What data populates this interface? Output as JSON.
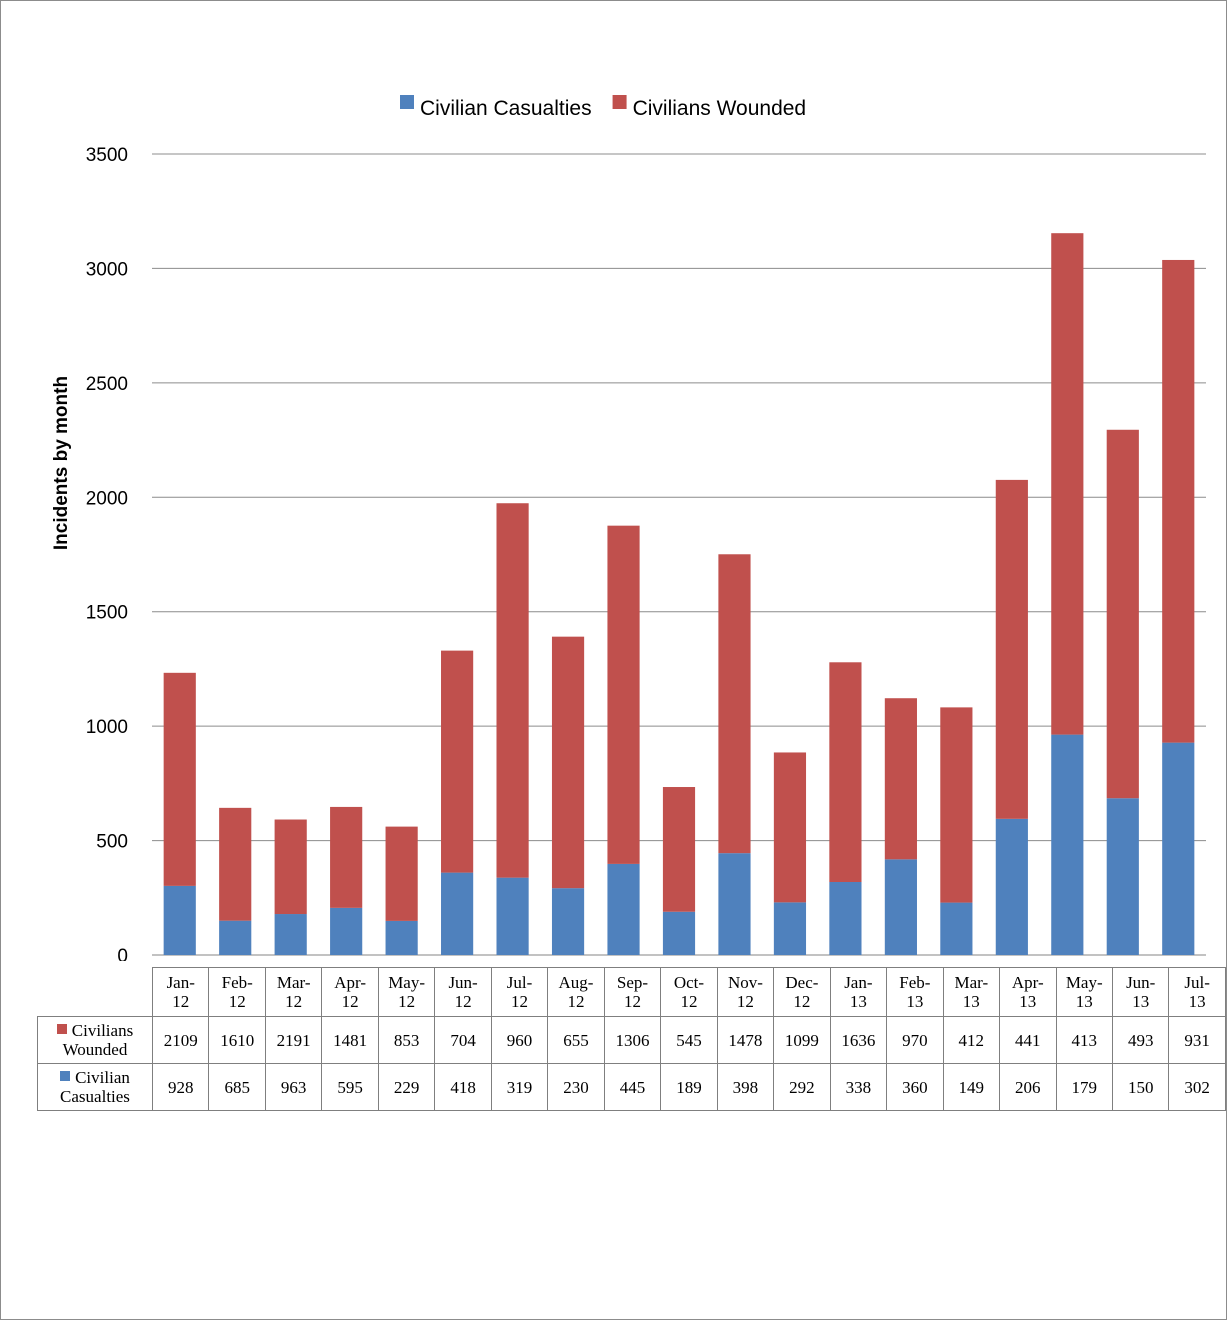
{
  "chart_data": {
    "type": "bar",
    "stacked": true,
    "ylabel": "Incidents by month",
    "ylim": [
      0,
      3500
    ],
    "yticks": [
      0,
      500,
      1000,
      1500,
      2000,
      2500,
      3000,
      3500
    ],
    "grid": true,
    "legend_position": "top",
    "categories": [
      "Jan-12",
      "Feb-12",
      "Mar-12",
      "Apr-12",
      "May-12",
      "Jun-12",
      "Jul-12",
      "Aug-12",
      "Sep-12",
      "Oct-12",
      "Nov-12",
      "Dec-12",
      "Jan-13",
      "Feb-13",
      "Mar-13",
      "Apr-13",
      "May-13",
      "Jun-13",
      "Jul-13"
    ],
    "category_lines": [
      [
        "Jan-",
        "12"
      ],
      [
        "Feb-",
        "12"
      ],
      [
        "Mar-",
        "12"
      ],
      [
        "Apr-",
        "12"
      ],
      [
        "May-",
        "12"
      ],
      [
        "Jun-",
        "12"
      ],
      [
        "Jul-",
        "12"
      ],
      [
        "Aug-",
        "12"
      ],
      [
        "Sep-",
        "12"
      ],
      [
        "Oct-",
        "12"
      ],
      [
        "Nov-",
        "12"
      ],
      [
        "Dec-",
        "12"
      ],
      [
        "Jan-",
        "13"
      ],
      [
        "Feb-",
        "13"
      ],
      [
        "Mar-",
        "13"
      ],
      [
        "Apr-",
        "13"
      ],
      [
        "May-",
        "13"
      ],
      [
        "Jun-",
        "13"
      ],
      [
        "Jul-",
        "13"
      ]
    ],
    "series": [
      {
        "name": "Civilian Casualties",
        "name_lines": [
          "Civilian",
          "Casualties"
        ],
        "color": "#4f81bd",
        "values": [
          302,
          150,
          179,
          206,
          149,
          360,
          338,
          292,
          398,
          189,
          445,
          230,
          319,
          418,
          229,
          595,
          963,
          685,
          928
        ],
        "table_values": [
          928,
          685,
          963,
          595,
          229,
          418,
          319,
          230,
          445,
          189,
          398,
          292,
          338,
          360,
          149,
          206,
          179,
          150,
          302
        ]
      },
      {
        "name": "Civilians Wounded",
        "name_lines": [
          "Civilians",
          "Wounded"
        ],
        "color": "#c0504d",
        "values": [
          931,
          493,
          413,
          441,
          412,
          970,
          1636,
          1099,
          1478,
          545,
          1306,
          655,
          960,
          704,
          853,
          1481,
          2191,
          1610,
          2109
        ],
        "table_values": [
          2109,
          1610,
          2191,
          1481,
          853,
          704,
          960,
          655,
          1306,
          545,
          1478,
          1099,
          1636,
          970,
          412,
          441,
          413,
          493,
          931
        ]
      }
    ]
  }
}
